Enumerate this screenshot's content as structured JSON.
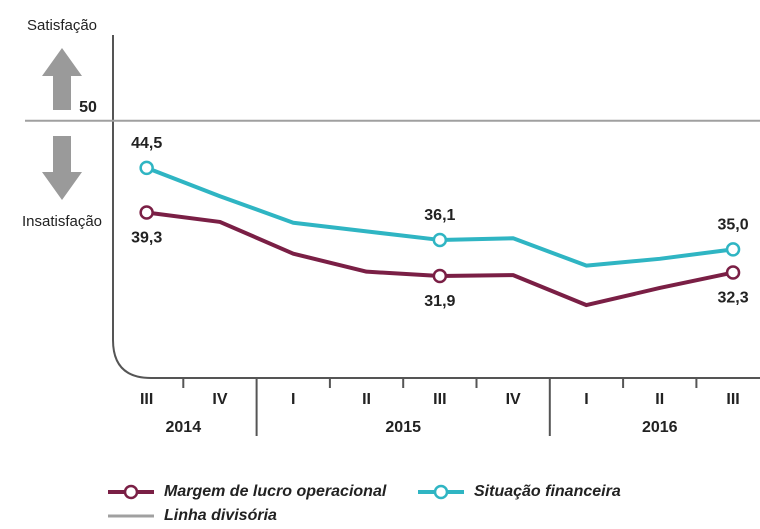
{
  "chart_data": {
    "type": "line",
    "categories": [
      "III",
      "IV",
      "I",
      "II",
      "III",
      "IV",
      "I",
      "II",
      "III"
    ],
    "x_groups": [
      {
        "label": "2014",
        "count": 2
      },
      {
        "label": "2015",
        "count": 4
      },
      {
        "label": "2016",
        "count": 3
      }
    ],
    "series": [
      {
        "name": "Margem de lucro operacional",
        "color": "#7a1f45",
        "values": [
          39.3,
          38.2,
          34.5,
          32.4,
          31.9,
          32.0,
          28.5,
          30.5,
          32.3
        ],
        "value_labels": [
          "39,3",
          null,
          null,
          null,
          "31,9",
          null,
          null,
          null,
          "32,3"
        ]
      },
      {
        "name": "Situação financeira",
        "color": "#2fb5c3",
        "values": [
          44.5,
          41.2,
          38.1,
          37.1,
          36.1,
          36.3,
          33.1,
          33.9,
          35.0
        ],
        "value_labels": [
          "44,5",
          null,
          null,
          null,
          "36,1",
          null,
          null,
          null,
          "35,0"
        ]
      }
    ],
    "reference_line": {
      "name": "Linha divisória",
      "value": 50,
      "color": "#a0a0a0"
    },
    "annotations": [
      "Satisfação",
      "Insatisfação"
    ],
    "ylim": [
      20,
      60
    ]
  }
}
